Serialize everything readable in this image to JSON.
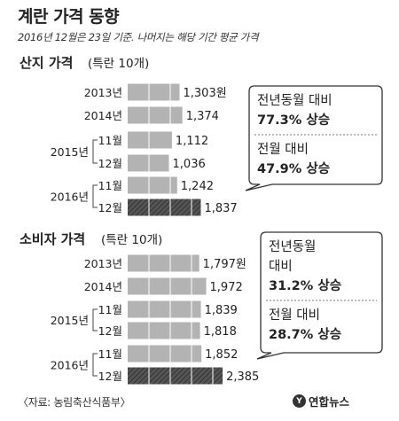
{
  "title": "계란 가격 동향",
  "subtitle": "2016년 12월은 23일 기준. 나머지는 해당 기간 평균 가격",
  "source": "〈자료: 농림축산식품부〉",
  "logo_text": "연합뉴스",
  "colors": {
    "bar": "#b3b3b3",
    "bar_highlight": "#555555",
    "callout_border": "#333333",
    "text": "#222222"
  },
  "chart_data": [
    {
      "type": "bar",
      "title": "산지 가격",
      "unit_label": "(특란 10개)",
      "categories": [
        "2013년",
        "2014년",
        "2015년 11월",
        "2015년 12월",
        "2016년 11월",
        "2016년 12월"
      ],
      "rows": [
        {
          "year": "2013년",
          "month": "",
          "value": 1303,
          "label": "1,303원"
        },
        {
          "year": "2014년",
          "month": "",
          "value": 1374,
          "label": "1,374"
        },
        {
          "year": "2015년",
          "month": "11월",
          "value": 1112,
          "label": "1,112"
        },
        {
          "year": "",
          "month": "12월",
          "value": 1036,
          "label": "1,036"
        },
        {
          "year": "2016년",
          "month": "11월",
          "value": 1242,
          "label": "1,242"
        },
        {
          "year": "",
          "month": "12월",
          "value": 1837,
          "label": "1,837",
          "highlight": true
        }
      ],
      "callout": {
        "line1": "전년동월 대비",
        "value1": "77.3% 상승",
        "line2": "전월 대비",
        "value2": "47.9% 상승"
      }
    },
    {
      "type": "bar",
      "title": "소비자 가격",
      "unit_label": "(특란 10개)",
      "categories": [
        "2013년",
        "2014년",
        "2015년 11월",
        "2015년 12월",
        "2016년 11월",
        "2016년 12월"
      ],
      "rows": [
        {
          "year": "2013년",
          "month": "",
          "value": 1797,
          "label": "1,797원"
        },
        {
          "year": "2014년",
          "month": "",
          "value": 1972,
          "label": "1,972"
        },
        {
          "year": "2015년",
          "month": "11월",
          "value": 1839,
          "label": "1,839"
        },
        {
          "year": "",
          "month": "12월",
          "value": 1818,
          "label": "1,818"
        },
        {
          "year": "2016년",
          "month": "11월",
          "value": 1852,
          "label": "1,852"
        },
        {
          "year": "",
          "month": "12월",
          "value": 2385,
          "label": "2,385",
          "highlight": true
        }
      ],
      "callout": {
        "line1a": "전년동월",
        "line1b": "대비",
        "value1": "31.2% 상승",
        "line2": "전월 대비",
        "value2": "28.7% 상승"
      }
    }
  ]
}
